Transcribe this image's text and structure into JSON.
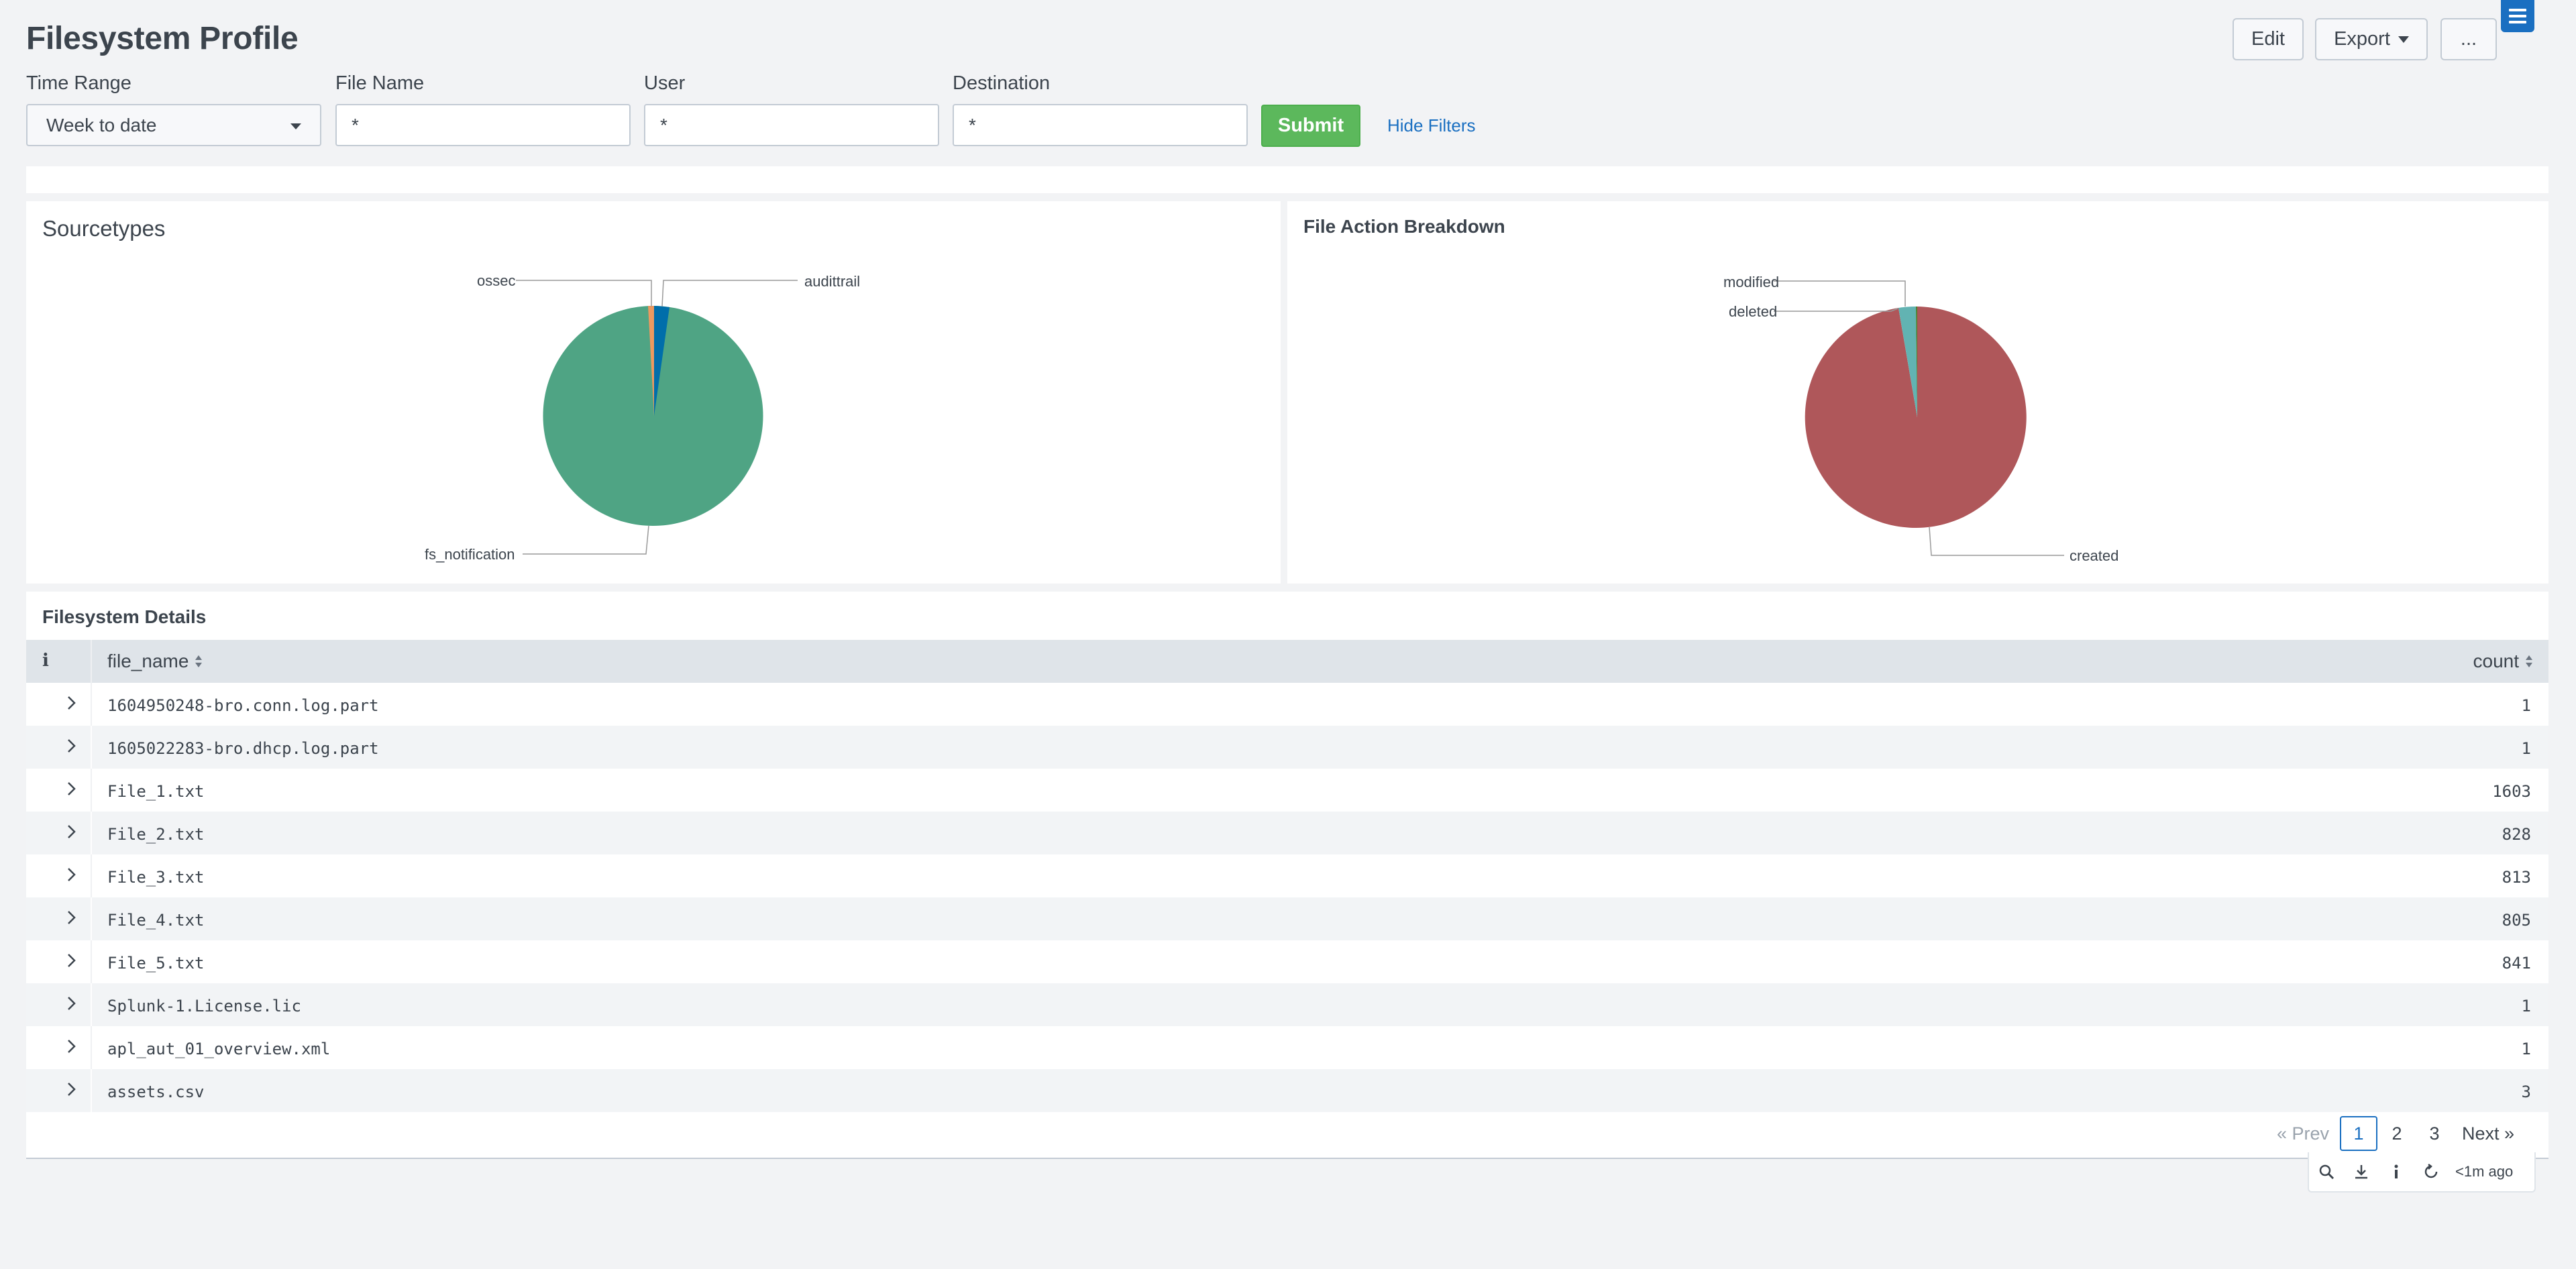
{
  "header": {
    "title": "Filesystem Profile",
    "edit_label": "Edit",
    "export_label": "Export",
    "more_label": "..."
  },
  "filters": {
    "time_range": {
      "label": "Time Range",
      "value": "Week to date"
    },
    "file_name": {
      "label": "File Name",
      "value": "*"
    },
    "user": {
      "label": "User",
      "value": "*"
    },
    "destination": {
      "label": "Destination",
      "value": "*"
    },
    "submit_label": "Submit",
    "hide_filters_label": "Hide Filters"
  },
  "sourcetypes_panel": {
    "title": "Sourcetypes",
    "slices": [
      {
        "label": "fs_notification",
        "color": "#4fa484"
      },
      {
        "label": "audittrail",
        "color": "#006eaa"
      },
      {
        "label": "ossec",
        "color": "#ec9960"
      }
    ]
  },
  "file_action_panel": {
    "title": "File Action Breakdown",
    "slices": [
      {
        "label": "created",
        "color": "#af575a"
      },
      {
        "label": "deleted",
        "color": "#62b3b2"
      },
      {
        "label": "modified",
        "color": "#4a7f2c"
      }
    ]
  },
  "table": {
    "title": "Filesystem Details",
    "info_icon": "i",
    "columns": {
      "file_name": "file_name",
      "count": "count"
    },
    "rows": [
      {
        "file_name": "1604950248-bro.conn.log.part",
        "count": "1"
      },
      {
        "file_name": "1605022283-bro.dhcp.log.part",
        "count": "1"
      },
      {
        "file_name": "File_1.txt",
        "count": "1603"
      },
      {
        "file_name": "File_2.txt",
        "count": "828"
      },
      {
        "file_name": "File_3.txt",
        "count": "813"
      },
      {
        "file_name": "File_4.txt",
        "count": "805"
      },
      {
        "file_name": "File_5.txt",
        "count": "841"
      },
      {
        "file_name": "Splunk-1.License.lic",
        "count": "1"
      },
      {
        "file_name": "apl_aut_01_overview.xml",
        "count": "1"
      },
      {
        "file_name": "assets.csv",
        "count": "3"
      }
    ]
  },
  "pagination": {
    "prev_label": "« Prev",
    "pages": [
      "1",
      "2",
      "3"
    ],
    "current": "1",
    "next_label": "Next »"
  },
  "footer": {
    "last_updated": "<1m ago"
  }
}
